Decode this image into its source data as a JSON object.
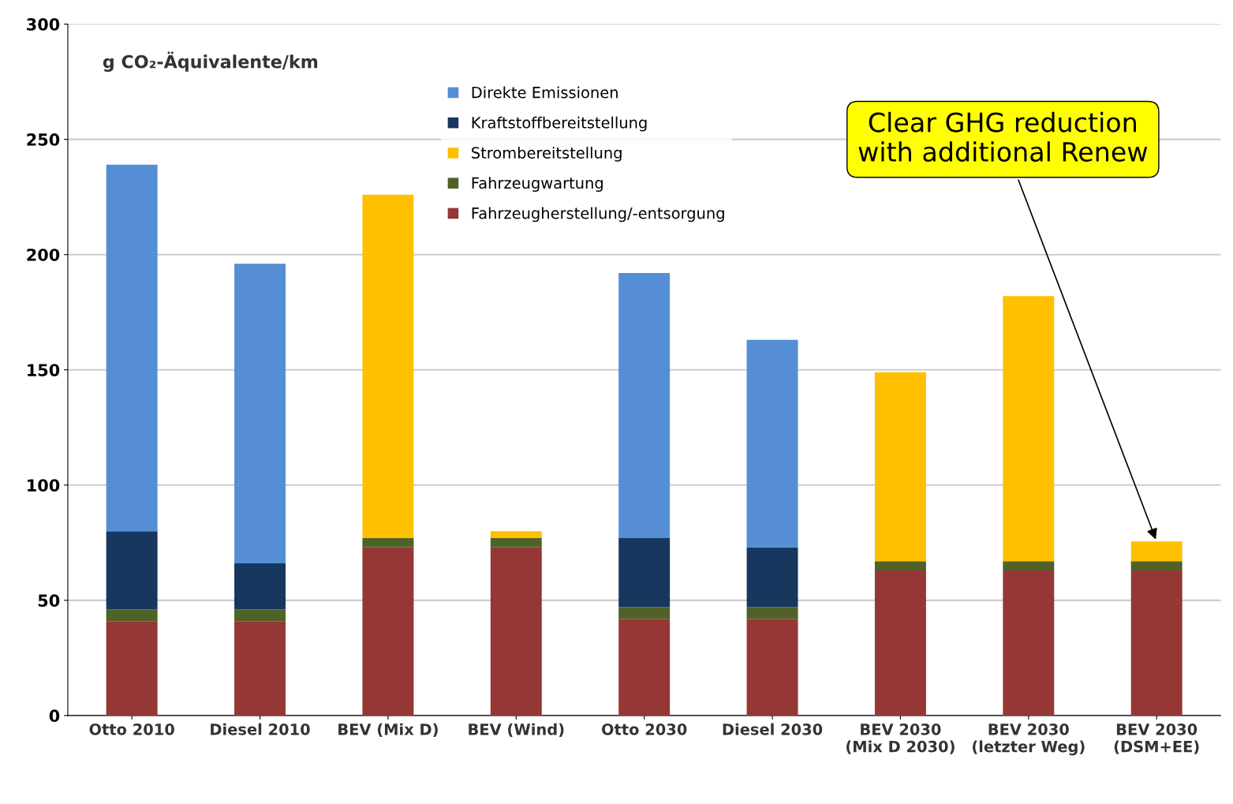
{
  "chart_data": {
    "type": "bar",
    "stacked": true,
    "ylabel": "g CO₂-Äquivalente/km",
    "categories": [
      "Otto 2010",
      "Diesel 2010",
      "BEV (Mix D)",
      "BEV (Wind)",
      "Otto 2030",
      "Diesel 2030",
      "BEV 2030\n(Mix D 2030)",
      "BEV 2030\n(letzter Weg)",
      "BEV 2030\n(DSM+EE)"
    ],
    "series": [
      {
        "name": "Fahrzeugherstellung/-entsorgung",
        "color": "#953735",
        "values": [
          41,
          41,
          73,
          73,
          42,
          42,
          63,
          63,
          63
        ]
      },
      {
        "name": "Fahrzeugwartung",
        "color": "#4f6228",
        "values": [
          5,
          5,
          4,
          4,
          5,
          5,
          4,
          4,
          4
        ]
      },
      {
        "name": "Strombereitstellung",
        "color": "#ffc000",
        "values": [
          0,
          0,
          149,
          3,
          0,
          0,
          82,
          115,
          8.5
        ]
      },
      {
        "name": "Kraftstoffbereitstellung",
        "color": "#17375e",
        "values": [
          34,
          20,
          0,
          0,
          30,
          26,
          0,
          0,
          0
        ]
      },
      {
        "name": "Direkte Emissionen",
        "color": "#558ed5",
        "values": [
          159,
          130,
          0,
          0,
          115,
          90,
          0,
          0,
          0
        ]
      }
    ],
    "ylim": [
      0,
      300
    ],
    "yticks": [
      0,
      50,
      100,
      150,
      200,
      250,
      300
    ],
    "grid": "y",
    "legend": "top",
    "annotations": [
      {
        "text": "Clear GHG reduction\nwith additional Renew",
        "x": "BEV 2030\n(DSM+EE)",
        "y": 75.5
      }
    ]
  }
}
